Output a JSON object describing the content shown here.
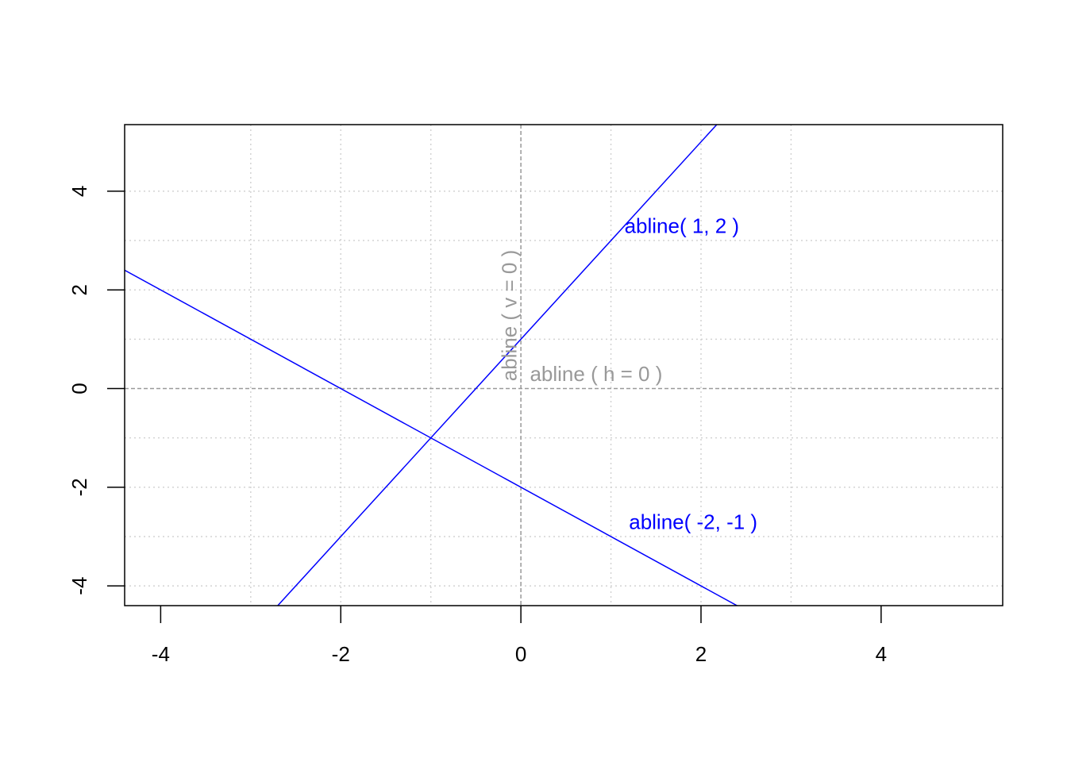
{
  "chart_data": {
    "type": "line",
    "title": "",
    "xlabel": "",
    "ylabel": "",
    "xlim": [
      -4.4,
      5.35
    ],
    "ylim": [
      -4.4,
      5.35
    ],
    "x_ticks": [
      -4,
      -2,
      0,
      2,
      4
    ],
    "y_ticks": [
      -4,
      -2,
      0,
      2,
      4
    ],
    "x_tick_labels": [
      "-4",
      "-2",
      "0",
      "2",
      "4"
    ],
    "y_tick_labels": [
      "-4",
      "-2",
      "0",
      "2",
      "4"
    ],
    "grid": true,
    "grid_x": [
      -3,
      -2,
      -1,
      1,
      2,
      3
    ],
    "grid_y": [
      -4,
      -3,
      -2,
      -1,
      1,
      2,
      3,
      4
    ],
    "series": [
      {
        "name": "abline( 1, 2 )",
        "intercept": 1,
        "slope": 2,
        "color": "#0000ff"
      },
      {
        "name": "abline( -2, -1 )",
        "intercept": -2,
        "slope": -1,
        "color": "#0000ff"
      }
    ],
    "reference_lines": [
      {
        "name": "abline ( h = 0 )",
        "h": 0,
        "color": "#999999"
      },
      {
        "name": "abline ( v = 0 )",
        "v": 0,
        "color": "#999999"
      }
    ],
    "annotations": [
      {
        "text": "abline( 1, 2 )",
        "x": 1.15,
        "y": 3.15,
        "color": "#0000ff",
        "rotate": 0
      },
      {
        "text": "abline( -2, -1 )",
        "x": 1.2,
        "y": -2.85,
        "color": "#0000ff",
        "rotate": 0
      },
      {
        "text": "abline ( h = 0 )",
        "x": 0.1,
        "y": 0.15,
        "color": "#999999",
        "rotate": 0
      },
      {
        "text": "abline ( v = 0 )",
        "x": -0.05,
        "y": 0.15,
        "color": "#999999",
        "rotate": -90
      }
    ]
  }
}
